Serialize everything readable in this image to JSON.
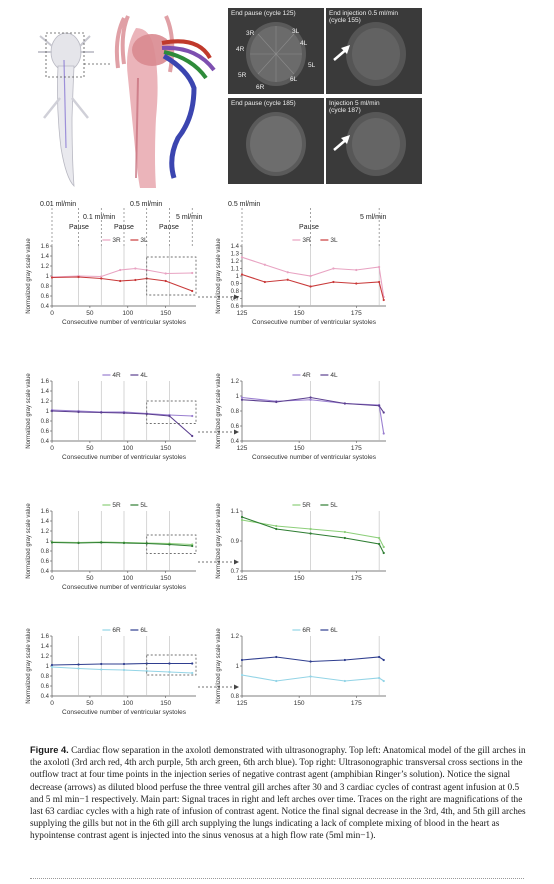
{
  "ultrasound_tiles": [
    {
      "label": "End pause (cycle 125)",
      "markers": [
        "3R",
        "3L",
        "4R",
        "4L",
        "5R",
        "5L",
        "6R",
        "6L"
      ],
      "arrow": false
    },
    {
      "label": "End injection 0.5 ml/min\n(cycle 155)",
      "markers": [],
      "arrow": true
    },
    {
      "label": "End pause (cycle 185)",
      "markers": [],
      "arrow": false
    },
    {
      "label": "Injection 5 ml/min\n(cycle 187)",
      "markers": [],
      "arrow": true
    }
  ],
  "annotations": {
    "top_rates": [
      "0.01 ml/min",
      "0.1 ml/min",
      "0.5 ml/min",
      "5 ml/min"
    ],
    "pauses": [
      "Pause",
      "Pause",
      "Pause"
    ],
    "right_rates": [
      "0.5 ml/min",
      "5 ml/min"
    ],
    "right_pause": "Pause"
  },
  "chart_data": [
    {
      "type": "line",
      "panel": "3rd arch full",
      "xlabel": "Consecutive number of ventricular systoles",
      "ylabel": "Normalized gray scale value",
      "xlim": [
        0,
        190
      ],
      "ylim": [
        0.4,
        1.6
      ],
      "xticks": [
        0,
        50,
        100,
        150
      ],
      "yticks": [
        0.4,
        0.6,
        0.8,
        1,
        1.2,
        1.4,
        1.6
      ],
      "legend": [
        "3R",
        "3L"
      ],
      "series": [
        {
          "name": "3R",
          "color": "#e8a3c2",
          "x": [
            0,
            35,
            65,
            90,
            110,
            125,
            150,
            185
          ],
          "y": [
            0.98,
            1.0,
            0.99,
            1.12,
            1.15,
            1.12,
            1.05,
            1.06
          ]
        },
        {
          "name": "3L",
          "color": "#c93a3a",
          "x": [
            0,
            35,
            65,
            90,
            110,
            125,
            150,
            185
          ],
          "y": [
            0.97,
            0.98,
            0.95,
            0.9,
            0.92,
            0.95,
            0.9,
            0.7
          ]
        }
      ],
      "zoom_box": [
        125,
        190,
        0.62,
        1.38
      ]
    },
    {
      "type": "line",
      "panel": "3rd arch zoom",
      "xlabel": "Consecutive number of ventricular systoles",
      "ylabel": "Normalized gray scale value",
      "xlim": [
        125,
        188
      ],
      "ylim": [
        0.6,
        1.4
      ],
      "xticks": [
        125,
        150,
        175
      ],
      "yticks": [
        0.6,
        0.7,
        0.8,
        0.9,
        1,
        1.1,
        1.2,
        1.3,
        1.4
      ],
      "legend": [
        "3R",
        "3L"
      ],
      "series": [
        {
          "name": "3R",
          "color": "#e8a3c2",
          "x": [
            125,
            135,
            145,
            155,
            165,
            175,
            185,
            187
          ],
          "y": [
            1.25,
            1.15,
            1.05,
            1.0,
            1.1,
            1.08,
            1.12,
            0.72
          ]
        },
        {
          "name": "3L",
          "color": "#c93a3a",
          "x": [
            125,
            135,
            145,
            155,
            165,
            175,
            185,
            187
          ],
          "y": [
            1.02,
            0.92,
            0.95,
            0.86,
            0.92,
            0.9,
            0.92,
            0.68
          ]
        }
      ]
    },
    {
      "type": "line",
      "panel": "4th arch full",
      "xlabel": "Consecutive number of ventricular systoles",
      "ylabel": "Normalized gray scale value",
      "xlim": [
        0,
        190
      ],
      "ylim": [
        0.4,
        1.6
      ],
      "xticks": [
        0,
        50,
        100,
        150
      ],
      "yticks": [
        0.4,
        0.6,
        0.8,
        1,
        1.2,
        1.4,
        1.6
      ],
      "legend": [
        "4R",
        "4L"
      ],
      "series": [
        {
          "name": "4R",
          "color": "#9a7fd0",
          "x": [
            0,
            35,
            65,
            95,
            125,
            155,
            185
          ],
          "y": [
            1.02,
            1.0,
            0.98,
            0.98,
            0.95,
            0.92,
            0.9
          ]
        },
        {
          "name": "4L",
          "color": "#5b3f8f",
          "x": [
            0,
            35,
            65,
            95,
            125,
            155,
            185
          ],
          "y": [
            1.0,
            0.98,
            0.97,
            0.96,
            0.94,
            0.9,
            0.5
          ]
        }
      ],
      "zoom_box": [
        125,
        190,
        0.75,
        1.2
      ]
    },
    {
      "type": "line",
      "panel": "4th arch zoom",
      "xlabel": "Consecutive number of ventricular systoles",
      "ylabel": "Normalized gray scale value",
      "xlim": [
        125,
        188
      ],
      "ylim": [
        0.4,
        1.2
      ],
      "xticks": [
        125,
        150,
        175
      ],
      "yticks": [
        0.4,
        0.6,
        0.8,
        1,
        1.2
      ],
      "legend": [
        "4R",
        "4L"
      ],
      "series": [
        {
          "name": "4R",
          "color": "#9a7fd0",
          "x": [
            125,
            140,
            155,
            170,
            185,
            187
          ],
          "y": [
            0.98,
            0.93,
            0.95,
            0.9,
            0.88,
            0.5
          ]
        },
        {
          "name": "4L",
          "color": "#5b3f8f",
          "x": [
            125,
            140,
            155,
            170,
            185,
            187
          ],
          "y": [
            0.95,
            0.92,
            0.98,
            0.9,
            0.87,
            0.78
          ]
        }
      ]
    },
    {
      "type": "line",
      "panel": "5th arch full",
      "xlabel": "Consecutive number of ventricular systoles",
      "ylabel": "Normalized gray scale value",
      "xlim": [
        0,
        190
      ],
      "ylim": [
        0.4,
        1.6
      ],
      "xticks": [
        0,
        50,
        100,
        150
      ],
      "yticks": [
        0.4,
        0.6,
        0.8,
        1,
        1.2,
        1.4,
        1.6
      ],
      "legend": [
        "5R",
        "5L"
      ],
      "series": [
        {
          "name": "5R",
          "color": "#8dcf7a",
          "x": [
            0,
            35,
            65,
            95,
            125,
            155,
            185
          ],
          "y": [
            0.98,
            0.97,
            0.98,
            0.97,
            0.96,
            0.95,
            0.93
          ]
        },
        {
          "name": "5L",
          "color": "#2e7d32",
          "x": [
            0,
            35,
            65,
            95,
            125,
            155,
            185
          ],
          "y": [
            0.97,
            0.96,
            0.97,
            0.96,
            0.95,
            0.93,
            0.9
          ]
        }
      ],
      "zoom_box": [
        125,
        190,
        0.75,
        1.12
      ]
    },
    {
      "type": "line",
      "panel": "5th arch zoom",
      "xlabel": "",
      "ylabel": "Normalized gray scale value",
      "xlim": [
        125,
        188
      ],
      "ylim": [
        0.7,
        1.1
      ],
      "xticks": [
        125,
        150,
        175
      ],
      "yticks": [
        0.7,
        0.9,
        1.1
      ],
      "legend": [
        "5R",
        "5L"
      ],
      "series": [
        {
          "name": "5R",
          "color": "#8dcf7a",
          "x": [
            125,
            140,
            155,
            170,
            185,
            187
          ],
          "y": [
            1.04,
            1.0,
            0.98,
            0.96,
            0.92,
            0.86
          ]
        },
        {
          "name": "5L",
          "color": "#2e7d32",
          "x": [
            125,
            140,
            155,
            170,
            185,
            187
          ],
          "y": [
            1.06,
            0.98,
            0.95,
            0.92,
            0.88,
            0.82
          ]
        }
      ]
    },
    {
      "type": "line",
      "panel": "6th arch full",
      "xlabel": "Consecutive number of ventricular systoles",
      "ylabel": "Normalized gray scale value",
      "xlim": [
        0,
        190
      ],
      "ylim": [
        0.4,
        1.6
      ],
      "xticks": [
        0,
        50,
        100,
        150
      ],
      "yticks": [
        0.4,
        0.6,
        0.8,
        1,
        1.2,
        1.4,
        1.6
      ],
      "legend": [
        "6R",
        "6L"
      ],
      "series": [
        {
          "name": "6R",
          "color": "#93d4e6",
          "x": [
            0,
            35,
            65,
            95,
            125,
            155,
            185
          ],
          "y": [
            0.98,
            0.95,
            0.93,
            0.92,
            0.9,
            0.88,
            0.86
          ]
        },
        {
          "name": "6L",
          "color": "#2f3e8f",
          "x": [
            0,
            35,
            65,
            95,
            125,
            155,
            185
          ],
          "y": [
            1.02,
            1.03,
            1.04,
            1.04,
            1.05,
            1.05,
            1.05
          ]
        }
      ],
      "zoom_box": [
        125,
        190,
        0.82,
        1.22
      ]
    },
    {
      "type": "line",
      "panel": "6th arch zoom",
      "xlabel": "",
      "ylabel": "Normalized gray scale value",
      "xlim": [
        125,
        188
      ],
      "ylim": [
        0.8,
        1.2
      ],
      "xticks": [
        125,
        150,
        175
      ],
      "yticks": [
        0.8,
        1,
        1.2
      ],
      "legend": [
        "6R",
        "6L"
      ],
      "series": [
        {
          "name": "6R",
          "color": "#93d4e6",
          "x": [
            125,
            140,
            155,
            170,
            185,
            187
          ],
          "y": [
            0.94,
            0.9,
            0.93,
            0.9,
            0.92,
            0.9
          ]
        },
        {
          "name": "6L",
          "color": "#2f3e8f",
          "x": [
            125,
            140,
            155,
            170,
            185,
            187
          ],
          "y": [
            1.04,
            1.06,
            1.03,
            1.04,
            1.06,
            1.04
          ]
        }
      ]
    }
  ],
  "caption": {
    "label": "Figure 4.",
    "text": "Cardiac flow separation in the axolotl demonstrated with ultrasonography. Top left: Anatomical model of the gill arches in the axolotl (3rd arch red, 4th arch purple, 5th arch green, 6th arch blue). Top right: Ultrasonographic transversal cross sections in the outflow tract at four time points in the injection series of negative contrast agent (amphibian Ringer’s solution). Notice the signal decrease (arrows) as diluted blood perfuse the three ventral gill arches after 30 and 3 cardiac cycles of contrast agent infusion at 0.5 and 5 ml min−1 respectively. Main part: Signal traces in right and left arches over time. Traces on the right are magnifications of the last 63 cardiac cycles with a high rate of infusion of contrast agent. Notice the final signal decrease in the 3rd, 4th, and 5th gill arches supplying the gills but not in the 6th gill arch supplying the lungs indicating a lack of complete mixing of blood in the heart as hypointense contrast agent is injected into the sinus venosus at a high flow rate (5ml min−1)."
  }
}
